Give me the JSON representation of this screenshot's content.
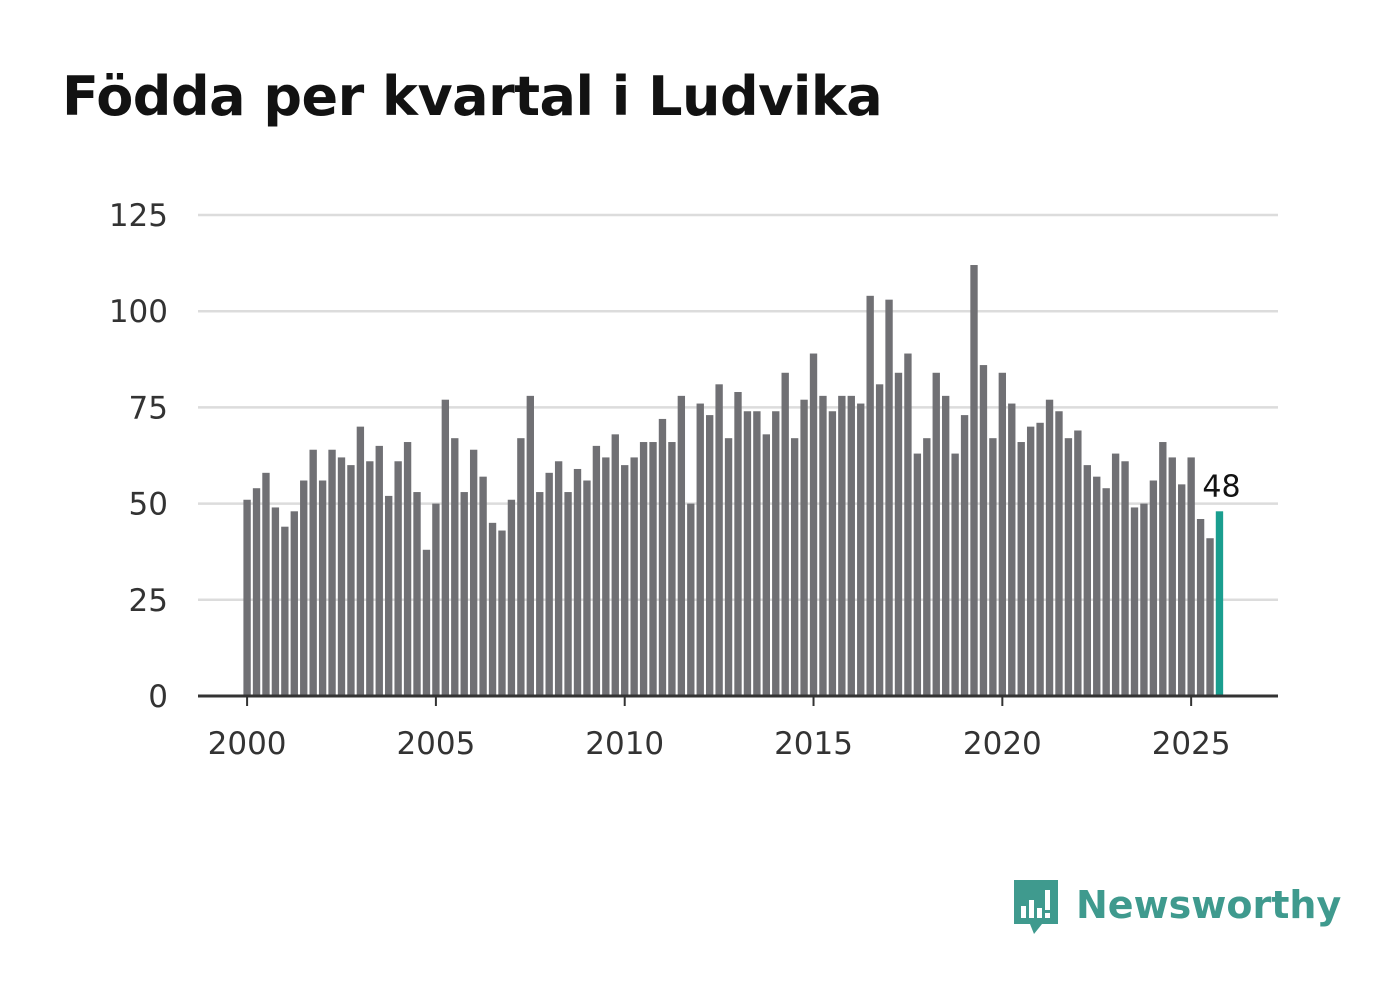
{
  "chart_data": {
    "type": "bar",
    "title": "Födda per kvartal i Ludvika",
    "xlabel": "",
    "ylabel": "",
    "x_start": 2000,
    "x_step": 0.25,
    "x_ticks": [
      "2000",
      "2005",
      "2010",
      "2015",
      "2020",
      "2025"
    ],
    "x_tick_values": [
      2000,
      2005,
      2010,
      2015,
      2020,
      2025
    ],
    "x_range": [
      1998.7,
      2027.3
    ],
    "y_ticks": [
      "0",
      "25",
      "50",
      "75",
      "100",
      "125"
    ],
    "y_tick_values": [
      0,
      25,
      50,
      75,
      100,
      125
    ],
    "ylim": [
      0,
      125
    ],
    "grid": true,
    "series": [
      {
        "name": "Födda",
        "values": [
          51,
          54,
          58,
          49,
          44,
          48,
          56,
          64,
          56,
          64,
          62,
          60,
          70,
          61,
          65,
          52,
          61,
          66,
          53,
          38,
          50,
          77,
          67,
          53,
          64,
          57,
          45,
          43,
          51,
          67,
          78,
          53,
          58,
          61,
          53,
          59,
          56,
          65,
          62,
          68,
          60,
          62,
          66,
          66,
          72,
          66,
          78,
          50,
          76,
          73,
          81,
          67,
          79,
          74,
          74,
          68,
          74,
          84,
          67,
          77,
          89,
          78,
          74,
          78,
          78,
          76,
          104,
          81,
          103,
          84,
          89,
          63,
          67,
          84,
          78,
          63,
          73,
          112,
          86,
          67,
          84,
          76,
          66,
          70,
          71,
          77,
          74,
          67,
          69,
          60,
          57,
          54,
          63,
          61,
          49,
          50,
          56,
          66,
          62,
          55,
          62,
          46,
          41,
          48
        ]
      }
    ],
    "highlight": {
      "index": 103,
      "value": 48,
      "label": "48"
    },
    "colors": {
      "bar": "#707074",
      "highlight": "#1a9e8f",
      "grid": "#dcdcdc",
      "axis": "#333333"
    }
  },
  "brand": {
    "name": "Newsworthy",
    "logo_icon": "newsworthy-logo-icon",
    "color": "#3f9a8e"
  }
}
